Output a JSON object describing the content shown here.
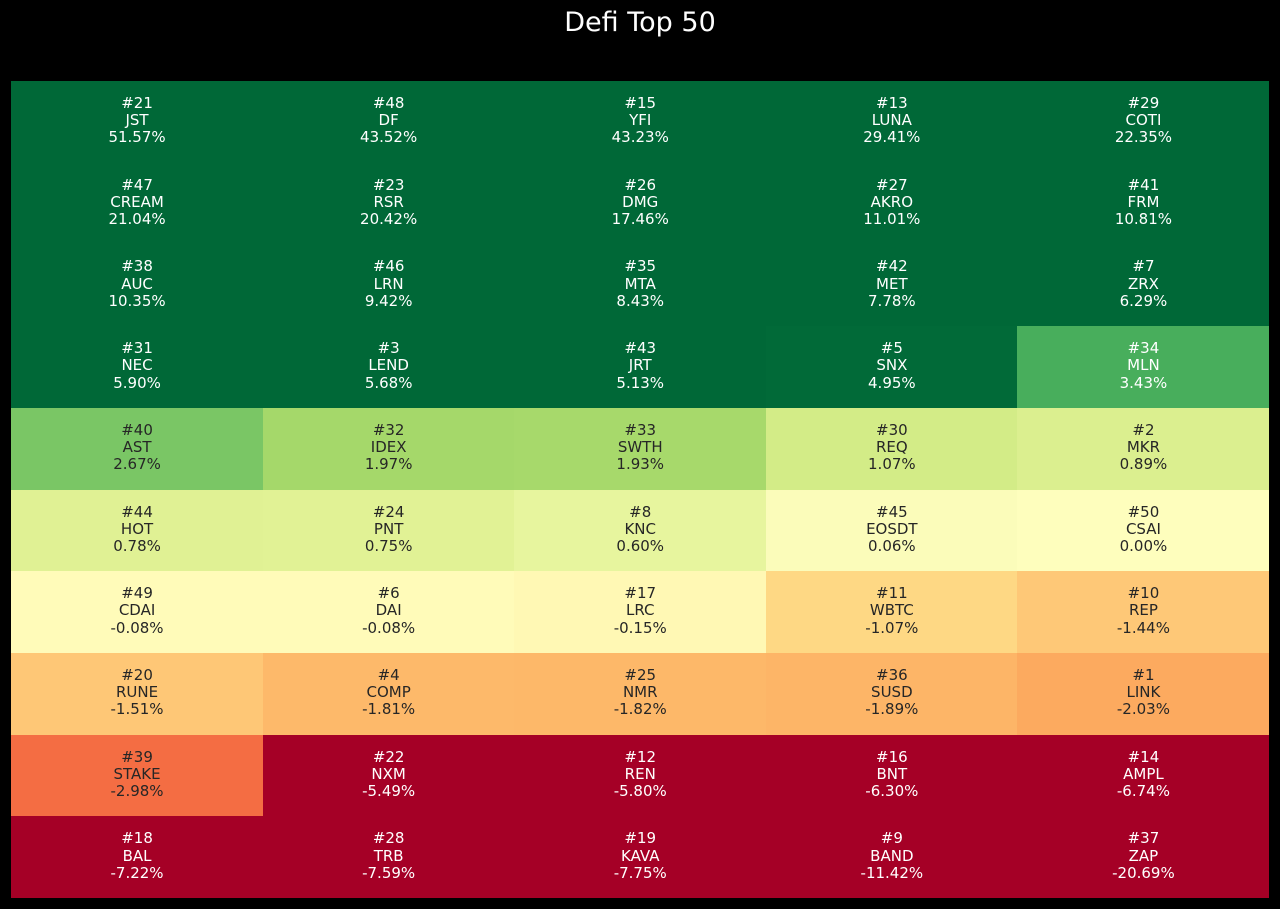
{
  "chart_data": {
    "type": "heatmap",
    "title": "Defi Top 50",
    "colormap": "RdYlGn",
    "columns": 5,
    "cells": [
      {
        "rank": "#21",
        "symbol": "JST",
        "change": "51.57%",
        "value": 51.57,
        "color": "#006837"
      },
      {
        "rank": "#48",
        "symbol": "DF",
        "change": "43.52%",
        "value": 43.52,
        "color": "#006837"
      },
      {
        "rank": "#15",
        "symbol": "YFI",
        "change": "43.23%",
        "value": 43.23,
        "color": "#006837"
      },
      {
        "rank": "#13",
        "symbol": "LUNA",
        "change": "29.41%",
        "value": 29.41,
        "color": "#006837"
      },
      {
        "rank": "#29",
        "symbol": "COTI",
        "change": "22.35%",
        "value": 22.35,
        "color": "#006837"
      },
      {
        "rank": "#47",
        "symbol": "CREAM",
        "change": "21.04%",
        "value": 21.04,
        "color": "#006837"
      },
      {
        "rank": "#23",
        "symbol": "RSR",
        "change": "20.42%",
        "value": 20.42,
        "color": "#006837"
      },
      {
        "rank": "#26",
        "symbol": "DMG",
        "change": "17.46%",
        "value": 17.46,
        "color": "#006837"
      },
      {
        "rank": "#27",
        "symbol": "AKRO",
        "change": "11.01%",
        "value": 11.01,
        "color": "#006837"
      },
      {
        "rank": "#41",
        "symbol": "FRM",
        "change": "10.81%",
        "value": 10.81,
        "color": "#006837"
      },
      {
        "rank": "#38",
        "symbol": "AUC",
        "change": "10.35%",
        "value": 10.35,
        "color": "#006837"
      },
      {
        "rank": "#46",
        "symbol": "LRN",
        "change": "9.42%",
        "value": 9.42,
        "color": "#006837"
      },
      {
        "rank": "#35",
        "symbol": "MTA",
        "change": "8.43%",
        "value": 8.43,
        "color": "#006837"
      },
      {
        "rank": "#42",
        "symbol": "MET",
        "change": "7.78%",
        "value": 7.78,
        "color": "#006837"
      },
      {
        "rank": "#7",
        "symbol": "ZRX",
        "change": "6.29%",
        "value": 6.29,
        "color": "#006837"
      },
      {
        "rank": "#31",
        "symbol": "NEC",
        "change": "5.90%",
        "value": 5.9,
        "color": "#006837"
      },
      {
        "rank": "#3",
        "symbol": "LEND",
        "change": "5.68%",
        "value": 5.68,
        "color": "#006837"
      },
      {
        "rank": "#43",
        "symbol": "JRT",
        "change": "5.13%",
        "value": 5.13,
        "color": "#006837"
      },
      {
        "rank": "#5",
        "symbol": "SNX",
        "change": "4.95%",
        "value": 4.95,
        "color": "#016a38"
      },
      {
        "rank": "#34",
        "symbol": "MLN",
        "change": "3.43%",
        "value": 3.43,
        "color": "#48ae5c"
      },
      {
        "rank": "#40",
        "symbol": "AST",
        "change": "2.67%",
        "value": 2.67,
        "color": "#7ac665"
      },
      {
        "rank": "#32",
        "symbol": "IDEX",
        "change": "1.97%",
        "value": 1.97,
        "color": "#a5d86a"
      },
      {
        "rank": "#33",
        "symbol": "SWTH",
        "change": "1.93%",
        "value": 1.93,
        "color": "#a7d96b"
      },
      {
        "rank": "#30",
        "symbol": "REQ",
        "change": "1.07%",
        "value": 1.07,
        "color": "#d3ec87"
      },
      {
        "rank": "#2",
        "symbol": "MKR",
        "change": "0.89%",
        "value": 0.89,
        "color": "#dbef8f"
      },
      {
        "rank": "#44",
        "symbol": "HOT",
        "change": "0.78%",
        "value": 0.78,
        "color": "#e0f194"
      },
      {
        "rank": "#24",
        "symbol": "PNT",
        "change": "0.75%",
        "value": 0.75,
        "color": "#e1f295"
      },
      {
        "rank": "#8",
        "symbol": "KNC",
        "change": "0.60%",
        "value": 0.6,
        "color": "#e7f59e"
      },
      {
        "rank": "#45",
        "symbol": "EOSDT",
        "change": "0.06%",
        "value": 0.06,
        "color": "#fbfcba"
      },
      {
        "rank": "#50",
        "symbol": "CSAI",
        "change": "0.00%",
        "value": 0.0,
        "color": "#fefebd"
      },
      {
        "rank": "#49",
        "symbol": "CDAI",
        "change": "-0.08%",
        "value": -0.08,
        "color": "#fffbb9"
      },
      {
        "rank": "#6",
        "symbol": "DAI",
        "change": "-0.08%",
        "value": -0.08,
        "color": "#fffbb9"
      },
      {
        "rank": "#17",
        "symbol": "LRC",
        "change": "-0.15%",
        "value": -0.15,
        "color": "#fff8b4"
      },
      {
        "rank": "#11",
        "symbol": "WBTC",
        "change": "-1.07%",
        "value": -1.07,
        "color": "#fed884"
      },
      {
        "rank": "#10",
        "symbol": "REP",
        "change": "-1.44%",
        "value": -1.44,
        "color": "#fec877"
      },
      {
        "rank": "#20",
        "symbol": "RUNE",
        "change": "-1.51%",
        "value": -1.51,
        "color": "#fec776"
      },
      {
        "rank": "#4",
        "symbol": "COMP",
        "change": "-1.81%",
        "value": -1.81,
        "color": "#fdb96a"
      },
      {
        "rank": "#25",
        "symbol": "NMR",
        "change": "-1.82%",
        "value": -1.82,
        "color": "#fdb869"
      },
      {
        "rank": "#36",
        "symbol": "SUSD",
        "change": "-1.89%",
        "value": -1.89,
        "color": "#fdb567"
      },
      {
        "rank": "#1",
        "symbol": "LINK",
        "change": "-2.03%",
        "value": -2.03,
        "color": "#fcaa5f"
      },
      {
        "rank": "#39",
        "symbol": "STAKE",
        "change": "-2.98%",
        "value": -2.98,
        "color": "#f46d43"
      },
      {
        "rank": "#22",
        "symbol": "NXM",
        "change": "-5.49%",
        "value": -5.49,
        "color": "#a50026"
      },
      {
        "rank": "#12",
        "symbol": "REN",
        "change": "-5.80%",
        "value": -5.8,
        "color": "#a50026"
      },
      {
        "rank": "#16",
        "symbol": "BNT",
        "change": "-6.30%",
        "value": -6.3,
        "color": "#a50026"
      },
      {
        "rank": "#14",
        "symbol": "AMPL",
        "change": "-6.74%",
        "value": -6.74,
        "color": "#a50026"
      },
      {
        "rank": "#18",
        "symbol": "BAL",
        "change": "-7.22%",
        "value": -7.22,
        "color": "#a50026"
      },
      {
        "rank": "#28",
        "symbol": "TRB",
        "change": "-7.59%",
        "value": -7.59,
        "color": "#a50026"
      },
      {
        "rank": "#19",
        "symbol": "KAVA",
        "change": "-7.75%",
        "value": -7.75,
        "color": "#a50026"
      },
      {
        "rank": "#9",
        "symbol": "BAND",
        "change": "-11.42%",
        "value": -11.42,
        "color": "#a50026"
      },
      {
        "rank": "#37",
        "symbol": "ZAP",
        "change": "-20.69%",
        "value": -20.69,
        "color": "#a50026"
      }
    ]
  }
}
